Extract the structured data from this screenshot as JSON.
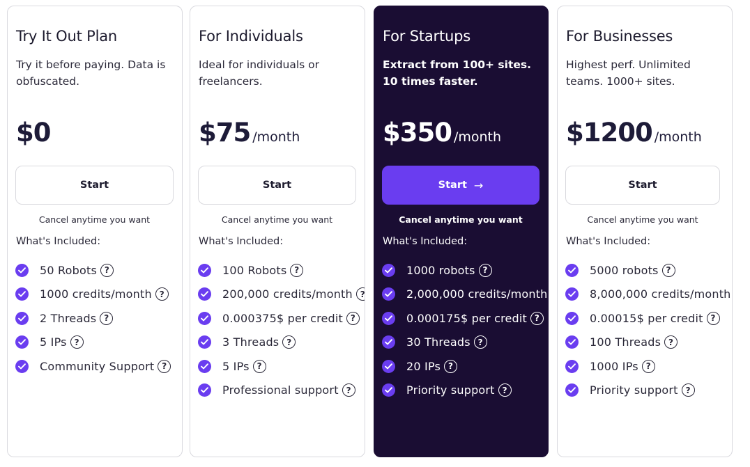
{
  "plans": [
    {
      "title": "Try It Out Plan",
      "description": "Try it before paying. Data is obfuscated.",
      "price": "$0",
      "period": "",
      "button_label": "Start",
      "cancel_note": "Cancel anytime you want",
      "included_label": "What's Included:",
      "features": [
        "50 Robots",
        "1000 credits/month",
        "2 Threads",
        "5 IPs",
        "Community Support"
      ]
    },
    {
      "title": "For Individuals",
      "description": "Ideal for individuals or freelancers.",
      "price": "$75",
      "period": "/month",
      "button_label": "Start",
      "cancel_note": "Cancel anytime you want",
      "included_label": "What's Included:",
      "features": [
        "100 Robots",
        "200,000 credits/month",
        "0.000375$ per credit",
        "3 Threads",
        "5 IPs",
        "Professional support"
      ]
    },
    {
      "title": "For Startups",
      "description": "Extract from 100+ sites. 10 times faster.",
      "price": "$350",
      "period": "/month",
      "button_label": "Start",
      "cancel_note": "Cancel anytime you want",
      "included_label": "What's Included:",
      "features": [
        "1000 robots",
        "2,000,000 credits/month",
        "0.000175$ per credit",
        "30 Threads",
        "20 IPs",
        "Priority support"
      ]
    },
    {
      "title": "For Businesses",
      "description": "Highest perf. Unlimited teams. 1000+ sites.",
      "price": "$1200",
      "period": "/month",
      "button_label": "Start",
      "cancel_note": "Cancel anytime you want",
      "included_label": "What's Included:",
      "features": [
        "5000 robots",
        "8,000,000 credits/month",
        "0.00015$ per credit",
        "100 Threads",
        "1000 IPs",
        "Priority support"
      ]
    }
  ],
  "icons": {
    "check": "check-circle-icon",
    "help": "question-circle-icon",
    "arrow": "arrow-right-icon"
  },
  "colors": {
    "accent": "#6a3df0",
    "featured_background": "#1a0d33",
    "border": "#d9d9de"
  }
}
